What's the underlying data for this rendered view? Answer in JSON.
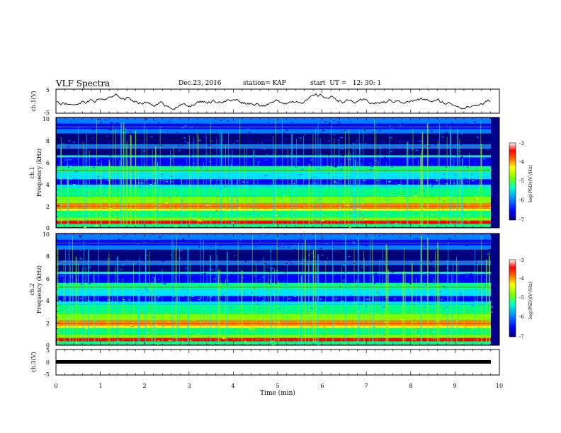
{
  "header": {
    "title": "VLF Spectra",
    "date": "Dec.23, 2016",
    "station": "station= KAP",
    "start": "start  UT =   12: 30: 1"
  },
  "colors": {
    "spectrogram_scale": [
      "#00007a",
      "#0000ff",
      "#0080ff",
      "#00e0ff",
      "#00ff80",
      "#80ff00",
      "#ffff00",
      "#ff8000",
      "#ff0000",
      "#ffb0b0",
      "#ffffff"
    ],
    "background": "#ffffff",
    "axis": "#000000"
  },
  "chart_data": [
    {
      "type": "line",
      "ylabel": "ch.1(V)",
      "ylim": [
        -5,
        5
      ],
      "yticks": [
        "5",
        "-5"
      ],
      "xlim": [
        0,
        10
      ],
      "note_series": "noisy waveform fluctuating roughly between -3 and 3 V over 0–9.8 min"
    },
    {
      "type": "heatmap",
      "ylabel_line1": "ch.1",
      "ylabel_line2": "Frequency (kHz)",
      "ylim": [
        0,
        10
      ],
      "yticks": [
        "0",
        "2",
        "4",
        "6",
        "8",
        "10"
      ],
      "xlim": [
        0,
        10
      ],
      "colorbar": {
        "label": "log(PSD)(V²/Hz)",
        "range": [
          -7,
          -3
        ],
        "ticks": [
          "-3",
          "-4",
          "-5",
          "-6",
          "-7"
        ]
      }
    },
    {
      "type": "heatmap",
      "ylabel_line1": "ch.2",
      "ylabel_line2": "Frequency (kHz)",
      "ylim": [
        0,
        10
      ],
      "yticks": [
        "0",
        "2",
        "4",
        "6",
        "8",
        "10"
      ],
      "xlim": [
        0,
        10
      ],
      "colorbar": {
        "label": "log(PSD)(V²/Hz)",
        "range": [
          -7,
          -3
        ],
        "ticks": [
          "-3",
          "-4",
          "-5",
          "-6",
          "-7"
        ]
      }
    },
    {
      "type": "line",
      "ylabel": "ch.3(V)",
      "ylim": [
        -5,
        5
      ],
      "yticks": [
        "5",
        "0",
        "-5"
      ],
      "xlim": [
        0,
        10
      ],
      "series": [
        {
          "x": [
            0,
            9.8
          ],
          "y": [
            -1.2,
            -1.2
          ]
        }
      ]
    }
  ],
  "xaxis": {
    "label": "Time (min)",
    "ticks": [
      "0",
      "1",
      "2",
      "3",
      "4",
      "5",
      "6",
      "7",
      "8",
      "9",
      "10"
    ]
  }
}
